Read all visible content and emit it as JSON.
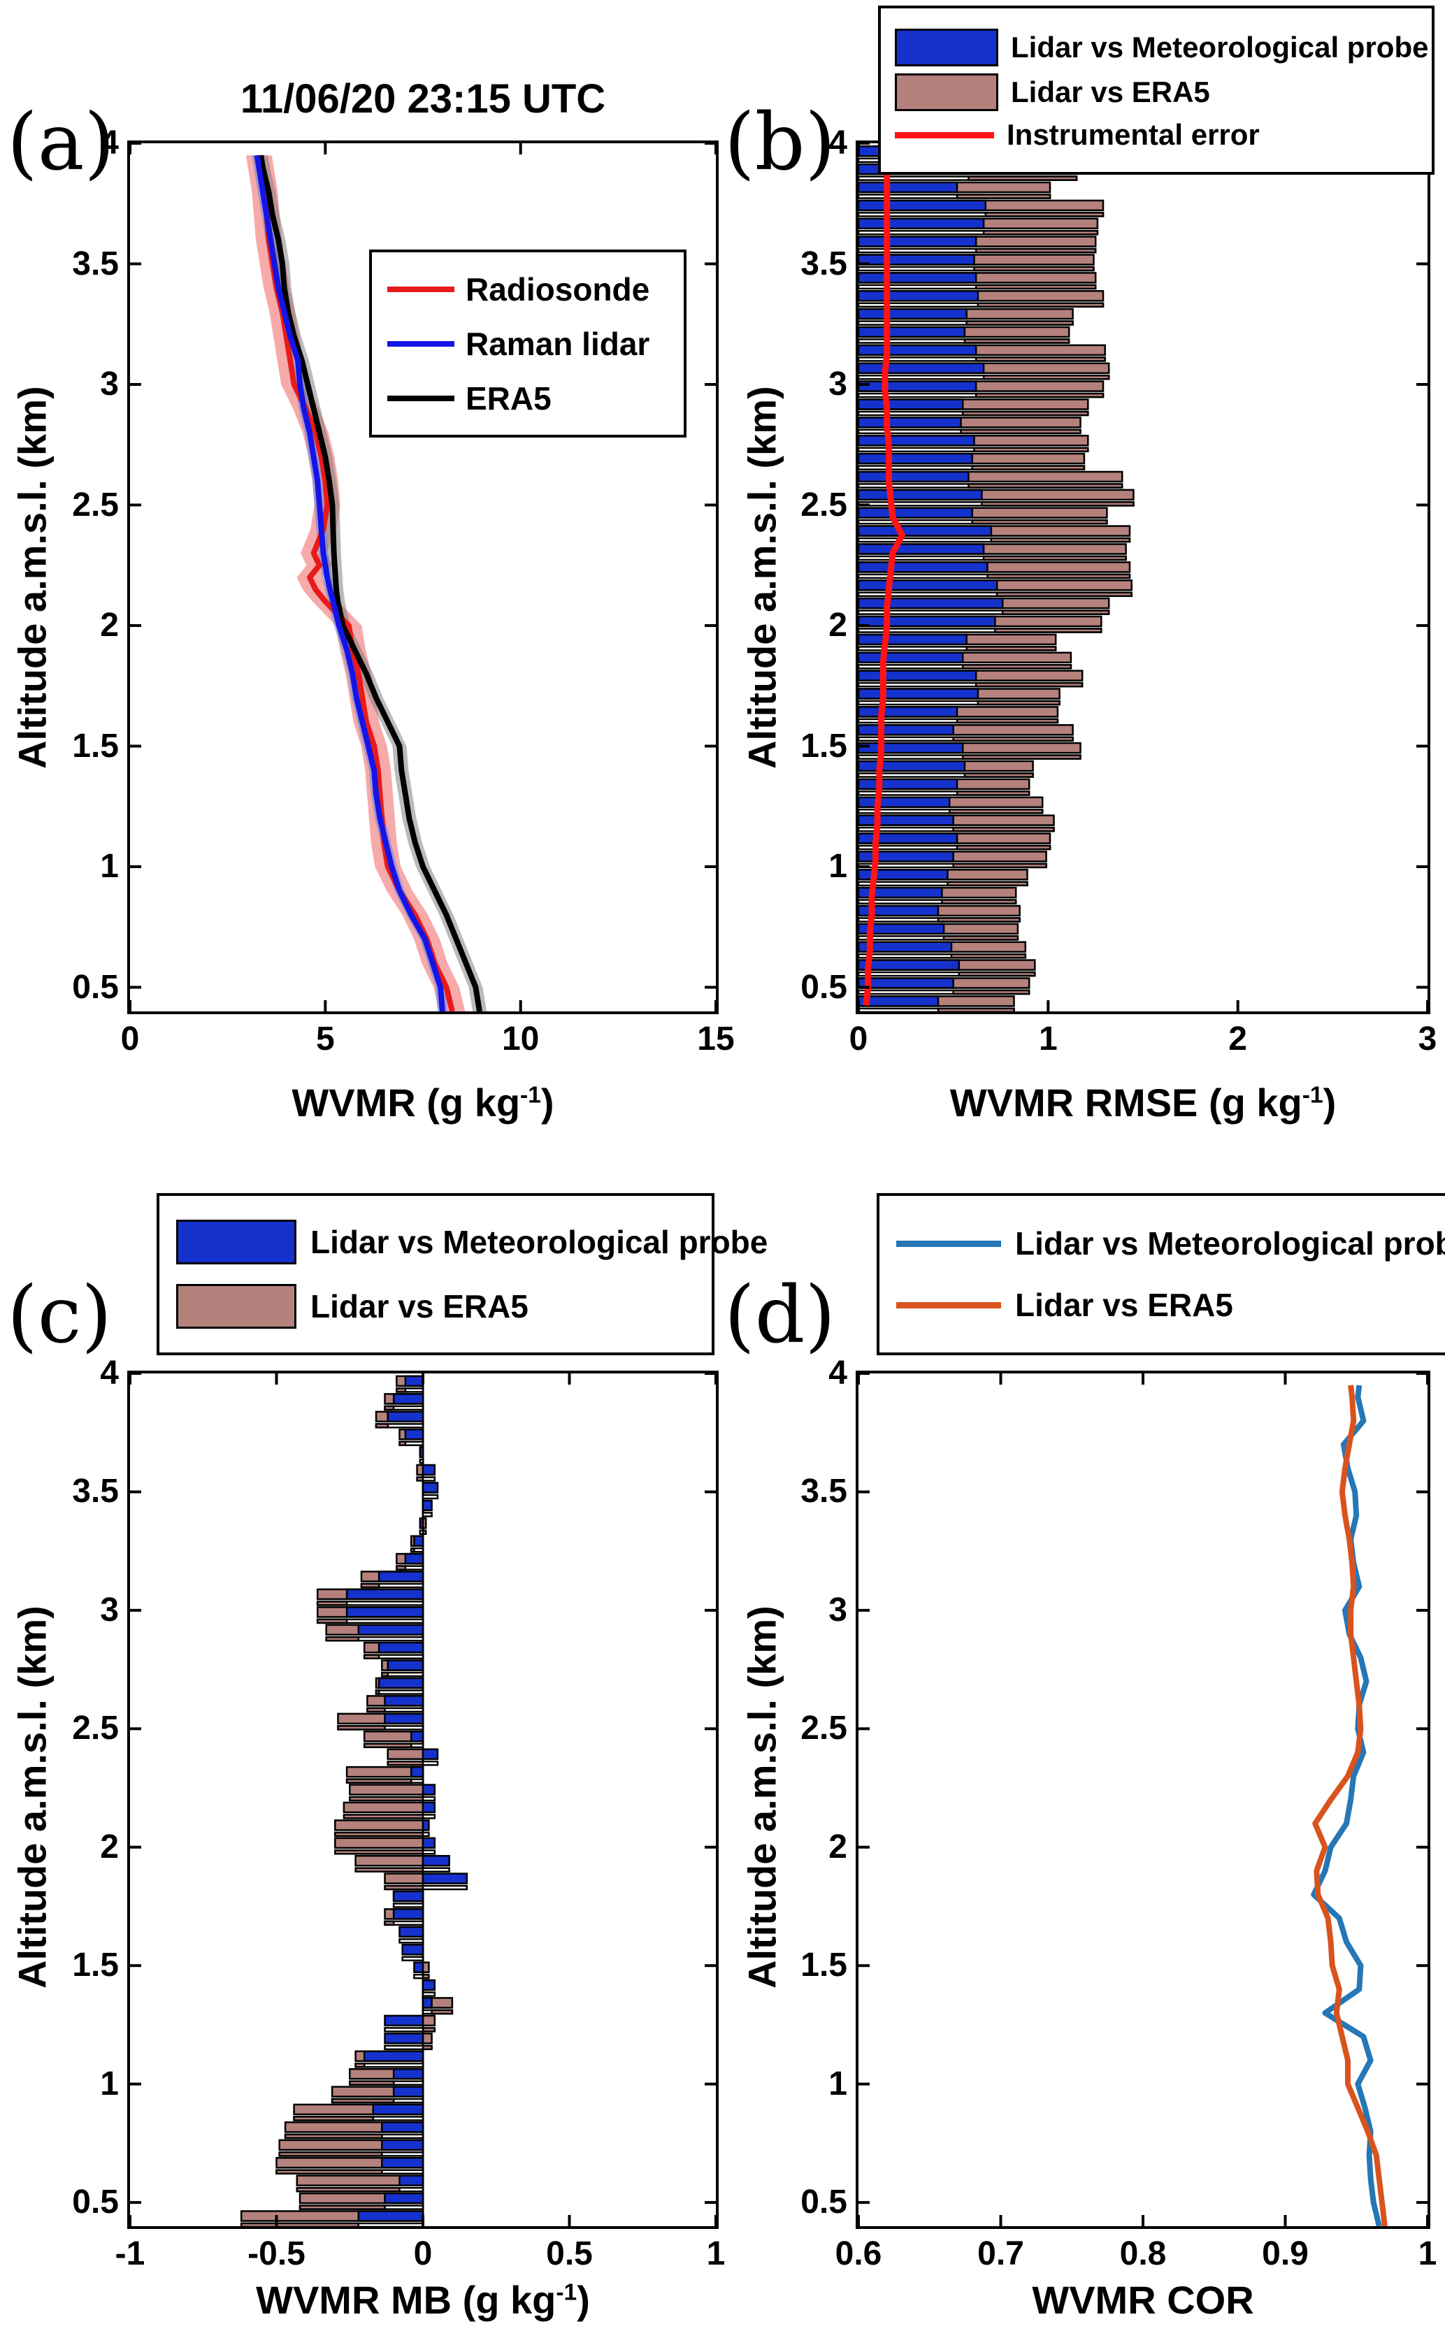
{
  "figure": {
    "ylabel": "Altitude a.m.s.l. (km)",
    "panel_tags": {
      "a": "(a)",
      "b": "(b)",
      "c": "(c)",
      "d": "(d)"
    },
    "background": "#ffffff",
    "axis_color": "#000000"
  },
  "chart_data": [
    {
      "panel": "a",
      "type": "line",
      "title": "11/06/20 23:15 UTC",
      "xlabel": "WVMR (g kg-1)",
      "xlabel_pre": "WVMR (g kg",
      "xlabel_sup": "-1",
      "xlabel_post": ")",
      "ylabel": "Altitude a.m.s.l. (km)",
      "xlim": [
        0,
        15
      ],
      "ylim": [
        0.4,
        4.0
      ],
      "xticks": [
        0,
        5,
        10,
        15
      ],
      "xtick_labels": [
        "0",
        "5",
        "10",
        "15"
      ],
      "yticks": [
        0.5,
        1,
        1.5,
        2,
        2.5,
        3,
        3.5,
        4
      ],
      "ytick_labels": [
        "0.5",
        "1",
        "1.5",
        "2",
        "2.5",
        "3",
        "3.5",
        "4"
      ],
      "legend_position": "inside-top-right",
      "altitudes": [
        0.4,
        0.5,
        0.6,
        0.7,
        0.8,
        0.9,
        1.0,
        1.1,
        1.2,
        1.3,
        1.4,
        1.5,
        1.6,
        1.7,
        1.8,
        1.9,
        2.0,
        2.1,
        2.15,
        2.2,
        2.25,
        2.3,
        2.4,
        2.5,
        2.6,
        2.7,
        2.8,
        2.9,
        3.0,
        3.1,
        3.2,
        3.3,
        3.4,
        3.5,
        3.6,
        3.7,
        3.8,
        3.9,
        3.95
      ],
      "series": [
        {
          "name": "Radiosonde",
          "color": "#e81a1a",
          "band_color": "rgba(240,85,85,0.5)",
          "band_halfwidth": 0.33,
          "values": [
            8.25,
            8.1,
            7.8,
            7.6,
            7.3,
            6.9,
            6.6,
            6.5,
            6.45,
            6.4,
            6.35,
            6.25,
            6.05,
            5.95,
            5.85,
            5.7,
            5.6,
            5.0,
            4.75,
            4.6,
            4.85,
            4.7,
            4.95,
            5.05,
            5.0,
            4.9,
            4.75,
            4.5,
            4.2,
            4.1,
            4.0,
            3.9,
            3.75,
            3.65,
            3.55,
            3.5,
            3.45,
            3.35,
            3.3
          ]
        },
        {
          "name": "Raman lidar",
          "color": "#1414e6",
          "band_color": "rgba(85,125,235,0.5)",
          "band_halfwidth": 0.13,
          "values": [
            8.0,
            7.95,
            7.75,
            7.55,
            7.2,
            6.9,
            6.7,
            6.55,
            6.4,
            6.3,
            6.25,
            6.1,
            5.95,
            5.8,
            5.7,
            5.55,
            5.35,
            5.2,
            5.12,
            5.05,
            5.0,
            4.95,
            4.9,
            4.85,
            4.8,
            4.7,
            4.6,
            4.45,
            4.35,
            4.3,
            4.1,
            3.95,
            3.8,
            3.7,
            3.6,
            3.5,
            3.4,
            3.3,
            3.25
          ]
        },
        {
          "name": "ERA5",
          "color": "#000000",
          "band_color": "rgba(120,120,120,0.5)",
          "band_halfwidth": 0.18,
          "values": [
            8.95,
            8.85,
            8.6,
            8.35,
            8.1,
            7.8,
            7.5,
            7.3,
            7.15,
            7.05,
            6.95,
            6.9,
            6.6,
            6.3,
            6.05,
            5.75,
            5.45,
            5.32,
            5.28,
            5.26,
            5.24,
            5.22,
            5.2,
            5.18,
            5.1,
            5.0,
            4.85,
            4.7,
            4.55,
            4.4,
            4.2,
            4.05,
            3.95,
            3.9,
            3.8,
            3.65,
            3.55,
            3.4,
            3.35
          ]
        }
      ]
    },
    {
      "panel": "b",
      "type": "bar",
      "orientation": "horizontal",
      "xlabel": "WVMR RMSE (g kg-1)",
      "xlabel_pre": "WVMR RMSE (g kg",
      "xlabel_sup": "-1",
      "xlabel_post": ")",
      "ylabel": "Altitude a.m.s.l. (km)",
      "xlim": [
        0,
        3
      ],
      "ylim": [
        0.4,
        4.0
      ],
      "xticks": [
        0,
        1,
        2,
        3
      ],
      "xtick_labels": [
        "0",
        "1",
        "2",
        "3"
      ],
      "yticks": [
        0.5,
        1,
        1.5,
        2,
        2.5,
        3,
        3.5,
        4
      ],
      "ytick_labels": [
        "0.5",
        "1",
        "1.5",
        "2",
        "2.5",
        "3",
        "3.5",
        "4"
      ],
      "legend_position": "above",
      "bar_colors": {
        "probe": "#1532cd",
        "era5": "#b5817c",
        "outline": "#000000"
      },
      "line_color": "#ff1414",
      "altitudes": [
        0.425,
        0.5,
        0.575,
        0.65,
        0.725,
        0.8,
        0.875,
        0.95,
        1.025,
        1.1,
        1.175,
        1.25,
        1.325,
        1.4,
        1.475,
        1.55,
        1.625,
        1.7,
        1.775,
        1.85,
        1.925,
        2.0,
        2.075,
        2.15,
        2.225,
        2.3,
        2.375,
        2.45,
        2.525,
        2.6,
        2.675,
        2.75,
        2.825,
        2.9,
        2.975,
        3.05,
        3.125,
        3.2,
        3.275,
        3.35,
        3.425,
        3.5,
        3.575,
        3.65,
        3.725,
        3.8,
        3.875,
        3.95
      ],
      "series": [
        {
          "name": "Lidar vs Meteorological probe",
          "swatch": "box",
          "color": "#1532cd",
          "values": [
            0.42,
            0.5,
            0.53,
            0.49,
            0.45,
            0.42,
            0.44,
            0.47,
            0.5,
            0.52,
            0.5,
            0.48,
            0.52,
            0.56,
            0.55,
            0.5,
            0.52,
            0.63,
            0.62,
            0.55,
            0.57,
            0.72,
            0.76,
            0.73,
            0.68,
            0.66,
            0.7,
            0.6,
            0.65,
            0.58,
            0.6,
            0.61,
            0.54,
            0.55,
            0.62,
            0.66,
            0.62,
            0.56,
            0.57,
            0.63,
            0.62,
            0.61,
            0.62,
            0.66,
            0.67,
            0.52,
            0.58,
            0.53
          ]
        },
        {
          "name": "Lidar vs ERA5",
          "swatch": "box",
          "color": "#b5817c",
          "values": [
            0.82,
            0.9,
            0.93,
            0.88,
            0.84,
            0.85,
            0.83,
            0.89,
            0.99,
            1.01,
            1.03,
            0.97,
            0.9,
            0.92,
            1.17,
            1.13,
            1.05,
            1.06,
            1.18,
            1.12,
            1.04,
            1.28,
            1.32,
            1.44,
            1.43,
            1.41,
            1.43,
            1.31,
            1.45,
            1.39,
            1.19,
            1.21,
            1.17,
            1.21,
            1.29,
            1.32,
            1.3,
            1.11,
            1.13,
            1.29,
            1.25,
            1.24,
            1.25,
            1.26,
            1.29,
            1.01,
            1.15,
            1.05
          ]
        },
        {
          "name": "Instrumental error",
          "swatch": "line",
          "color": "#ff1414",
          "values": [
            0.04,
            0.05,
            0.05,
            0.06,
            0.06,
            0.07,
            0.07,
            0.08,
            0.09,
            0.09,
            0.1,
            0.1,
            0.11,
            0.11,
            0.12,
            0.12,
            0.12,
            0.13,
            0.13,
            0.13,
            0.14,
            0.15,
            0.15,
            0.16,
            0.17,
            0.18,
            0.23,
            0.18,
            0.17,
            0.16,
            0.16,
            0.16,
            0.15,
            0.15,
            0.14,
            0.14,
            0.15,
            0.15,
            0.15,
            0.15,
            0.15,
            0.15,
            0.15,
            0.15,
            0.15,
            0.15,
            0.15,
            0.16
          ]
        }
      ]
    },
    {
      "panel": "c",
      "type": "bar",
      "orientation": "horizontal",
      "xlabel": "WVMR MB (g kg-1)",
      "xlabel_pre": "WVMR MB (g kg",
      "xlabel_sup": "-1",
      "xlabel_post": ")",
      "ylabel": "Altitude a.m.s.l. (km)",
      "xlim": [
        -1,
        1
      ],
      "ylim": [
        0.4,
        4.0
      ],
      "xticks": [
        -1,
        -0.5,
        0,
        0.5,
        1
      ],
      "xtick_labels": [
        "-1",
        "-0.5",
        "0",
        "0.5",
        "1"
      ],
      "yticks": [
        0.5,
        1,
        1.5,
        2,
        2.5,
        3,
        3.5,
        4
      ],
      "ytick_labels": [
        "0.5",
        "1",
        "1.5",
        "2",
        "2.5",
        "3",
        "3.5",
        "4"
      ],
      "legend_position": "above",
      "bar_colors": {
        "probe": "#1532cd",
        "era5": "#b5817c",
        "outline": "#000000"
      },
      "altitudes": [
        0.425,
        0.5,
        0.575,
        0.65,
        0.725,
        0.8,
        0.875,
        0.95,
        1.025,
        1.1,
        1.175,
        1.25,
        1.325,
        1.4,
        1.475,
        1.55,
        1.625,
        1.7,
        1.775,
        1.85,
        1.925,
        2.0,
        2.075,
        2.15,
        2.225,
        2.3,
        2.375,
        2.45,
        2.525,
        2.6,
        2.675,
        2.75,
        2.825,
        2.9,
        2.975,
        3.05,
        3.125,
        3.2,
        3.275,
        3.35,
        3.425,
        3.5,
        3.575,
        3.65,
        3.725,
        3.8,
        3.875,
        3.95
      ],
      "series": [
        {
          "name": "Lidar vs Meteorological probe",
          "swatch": "box",
          "color": "#1532cd",
          "values": [
            -0.22,
            -0.13,
            -0.08,
            -0.14,
            -0.14,
            -0.14,
            -0.17,
            -0.1,
            -0.1,
            -0.2,
            -0.13,
            -0.13,
            0.03,
            0.04,
            -0.03,
            -0.07,
            -0.08,
            -0.1,
            -0.1,
            0.15,
            0.09,
            0.04,
            0.02,
            0.04,
            0.04,
            -0.04,
            0.05,
            -0.04,
            -0.13,
            -0.13,
            -0.15,
            -0.12,
            -0.15,
            -0.22,
            -0.26,
            -0.26,
            -0.15,
            -0.06,
            -0.03,
            -0.01,
            0.03,
            0.05,
            0.04,
            -0.01,
            -0.06,
            -0.12,
            -0.1,
            -0.06
          ]
        },
        {
          "name": "Lidar vs ERA5",
          "swatch": "box",
          "color": "#b5817c",
          "values": [
            -0.62,
            -0.42,
            -0.43,
            -0.5,
            -0.49,
            -0.47,
            -0.44,
            -0.31,
            -0.25,
            -0.23,
            0.03,
            0.04,
            0.1,
            0.02,
            0.02,
            -0.02,
            -0.07,
            -0.13,
            -0.1,
            -0.13,
            -0.23,
            -0.3,
            -0.3,
            -0.27,
            -0.25,
            -0.26,
            -0.12,
            -0.2,
            -0.29,
            -0.19,
            -0.16,
            -0.14,
            -0.2,
            -0.33,
            -0.36,
            -0.36,
            -0.21,
            -0.09,
            -0.04,
            0.01,
            0.0,
            0.0,
            -0.02,
            -0.01,
            -0.08,
            -0.16,
            -0.13,
            -0.09
          ]
        }
      ]
    },
    {
      "panel": "d",
      "type": "line",
      "xlabel": "WVMR COR",
      "xlabel_pre": "WVMR COR",
      "xlabel_sup": "",
      "xlabel_post": "",
      "ylabel": "Altitude a.m.s.l. (km)",
      "xlim": [
        0.6,
        1.0
      ],
      "ylim": [
        0.4,
        4.0
      ],
      "xticks": [
        0.6,
        0.7,
        0.8,
        0.9,
        1.0
      ],
      "xtick_labels": [
        "0.6",
        "0.7",
        "0.8",
        "0.9",
        "1"
      ],
      "yticks": [
        0.5,
        1,
        1.5,
        2,
        2.5,
        3,
        3.5,
        4
      ],
      "ytick_labels": [
        "0.5",
        "1",
        "1.5",
        "2",
        "2.5",
        "3",
        "3.5",
        "4"
      ],
      "legend_position": "above",
      "altitudes": [
        0.4,
        0.5,
        0.6,
        0.7,
        0.8,
        0.9,
        1.0,
        1.1,
        1.2,
        1.3,
        1.4,
        1.5,
        1.6,
        1.7,
        1.8,
        1.9,
        2.0,
        2.1,
        2.2,
        2.3,
        2.4,
        2.5,
        2.6,
        2.7,
        2.8,
        2.9,
        3.0,
        3.1,
        3.2,
        3.3,
        3.4,
        3.5,
        3.6,
        3.7,
        3.8,
        3.9,
        3.95
      ],
      "series": [
        {
          "name": "Lidar vs Meteorological probe",
          "swatch": "line",
          "color": "#2577b6",
          "values": [
            0.966,
            0.962,
            0.96,
            0.959,
            0.96,
            0.956,
            0.951,
            0.96,
            0.955,
            0.928,
            0.952,
            0.953,
            0.943,
            0.938,
            0.92,
            0.928,
            0.932,
            0.943,
            0.946,
            0.948,
            0.955,
            0.951,
            0.952,
            0.957,
            0.953,
            0.945,
            0.942,
            0.952,
            0.948,
            0.946,
            0.95,
            0.949,
            0.944,
            0.941,
            0.955,
            0.951,
            0.952
          ]
        },
        {
          "name": "Lidar vs ERA5",
          "swatch": "line",
          "color": "#d9531e",
          "values": [
            0.97,
            0.968,
            0.966,
            0.964,
            0.958,
            0.951,
            0.944,
            0.944,
            0.94,
            0.936,
            0.938,
            0.933,
            0.932,
            0.93,
            0.923,
            0.922,
            0.928,
            0.921,
            0.932,
            0.944,
            0.951,
            0.953,
            0.952,
            0.95,
            0.948,
            0.946,
            0.946,
            0.948,
            0.947,
            0.945,
            0.942,
            0.94,
            0.942,
            0.945,
            0.948,
            0.947,
            0.946
          ]
        }
      ]
    }
  ]
}
